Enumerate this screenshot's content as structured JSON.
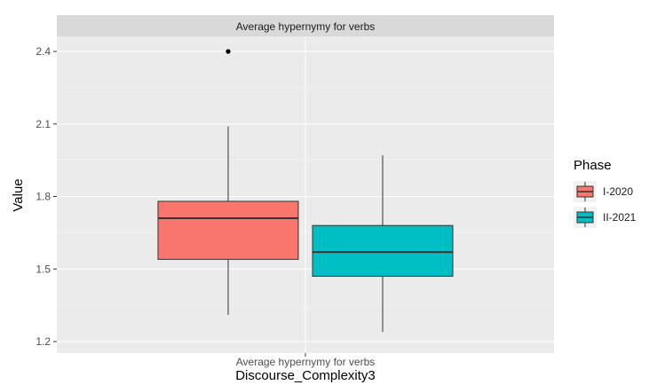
{
  "chart_data": {
    "type": "boxplot",
    "facet_title": "Average hypernymy for verbs",
    "xlabel": "Discourse_Complexity3",
    "ylabel": "Value",
    "categories": [
      "Average hypernymy for verbs"
    ],
    "ylim": [
      1.15,
      2.48
    ],
    "yticks": [
      1.2,
      1.5,
      1.8,
      2.1,
      2.4
    ],
    "ytick_labels": [
      "1.2",
      "1.5",
      "1.8",
      "2.1",
      "2.4"
    ],
    "grid": true,
    "legend": {
      "title": "Phase",
      "position": "right"
    },
    "series": [
      {
        "name": "I-2020",
        "color": "#F8766D",
        "whisker_low": 1.31,
        "q1": 1.54,
        "median": 1.71,
        "q3": 1.78,
        "whisker_high": 2.09,
        "outliers": [
          2.4
        ]
      },
      {
        "name": "II-2021",
        "color": "#00BFC4",
        "whisker_low": 1.24,
        "q1": 1.47,
        "median": 1.57,
        "q3": 1.68,
        "whisker_high": 1.97,
        "outliers": []
      }
    ]
  }
}
